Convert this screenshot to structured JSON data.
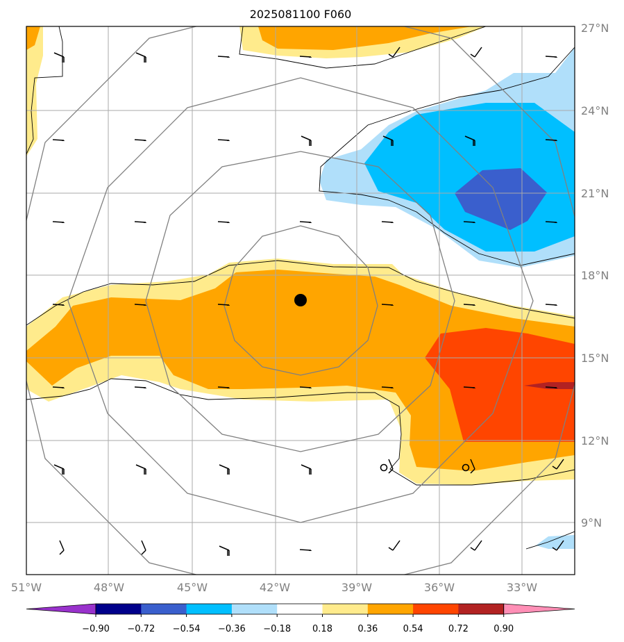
{
  "title": "2025081100 F060",
  "longitude_labels": [
    "51°W",
    "48°W",
    "45°W",
    "42°W",
    "39°W",
    "36°W",
    "33°W"
  ],
  "latitude_labels": [
    "27°N",
    "24°N",
    "21°N",
    "18°N",
    "15°N",
    "12°N",
    "9°N"
  ],
  "colorbar": {
    "tick_labels": [
      "−0.90",
      "−0.72",
      "−0.54",
      "−0.36",
      "−0.18",
      "0.18",
      "0.36",
      "0.54",
      "0.72",
      "0.90"
    ],
    "colors": [
      "#9932cc",
      "#00008b",
      "#3a5fcd",
      "#00bfff",
      "#b0dffa",
      "#ffffff",
      "#ffeb8c",
      "#ffa500",
      "#ff4500",
      "#b22222",
      "#ff8fb6"
    ]
  },
  "colors": {
    "grid": "#aaaaaa",
    "range_rings": "#808080",
    "contour": "#000000",
    "center_marker": "#000000"
  }
}
